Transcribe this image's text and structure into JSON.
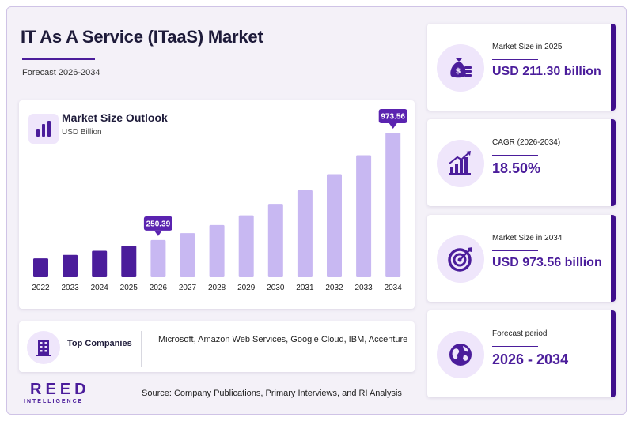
{
  "header": {
    "title": "IT As A Service (ITaaS) Market",
    "subtitle": "Forecast 2026-2034"
  },
  "chart": {
    "title": "Market Size Outlook",
    "unit": "USD Billion"
  },
  "chart_data": {
    "type": "bar",
    "title": "Market Size Outlook",
    "ylabel": "USD Billion",
    "categories": [
      "2022",
      "2023",
      "2024",
      "2025",
      "2026",
      "2027",
      "2028",
      "2029",
      "2030",
      "2031",
      "2032",
      "2033",
      "2034"
    ],
    "values": [
      127,
      150,
      178,
      211.3,
      250.39,
      297,
      352,
      417,
      494,
      586,
      694,
      822,
      973.56
    ],
    "ylim": [
      0,
      1000
    ],
    "grid": false,
    "labeled": {
      "2026": "250.39",
      "2034": "973.56"
    },
    "colors": {
      "historical": "#4b1d9b",
      "forecast": "#c8b8f2",
      "callout": "#5a23b0"
    }
  },
  "companies": {
    "label": "Top Companies",
    "list": "Microsoft, Amazon Web Services, Google Cloud, IBM, Accenture"
  },
  "stats": [
    {
      "label": "Market Size in 2025",
      "value": "USD 211.30 billion",
      "icon": "money-bag-icon"
    },
    {
      "label": "CAGR (2026-2034)",
      "value": "18.50%",
      "icon": "growth-chart-icon"
    },
    {
      "label": "Market Size in 2034",
      "value": "USD 973.56 billion",
      "icon": "target-icon"
    },
    {
      "label": "Forecast period",
      "value": "2026 - 2034",
      "icon": "globe-icon"
    }
  ],
  "footer": {
    "logo_main": "REED",
    "logo_sub": "INTELLIGENCE",
    "source": "Source: Company Publications, Primary Interviews, and RI Analysis"
  }
}
